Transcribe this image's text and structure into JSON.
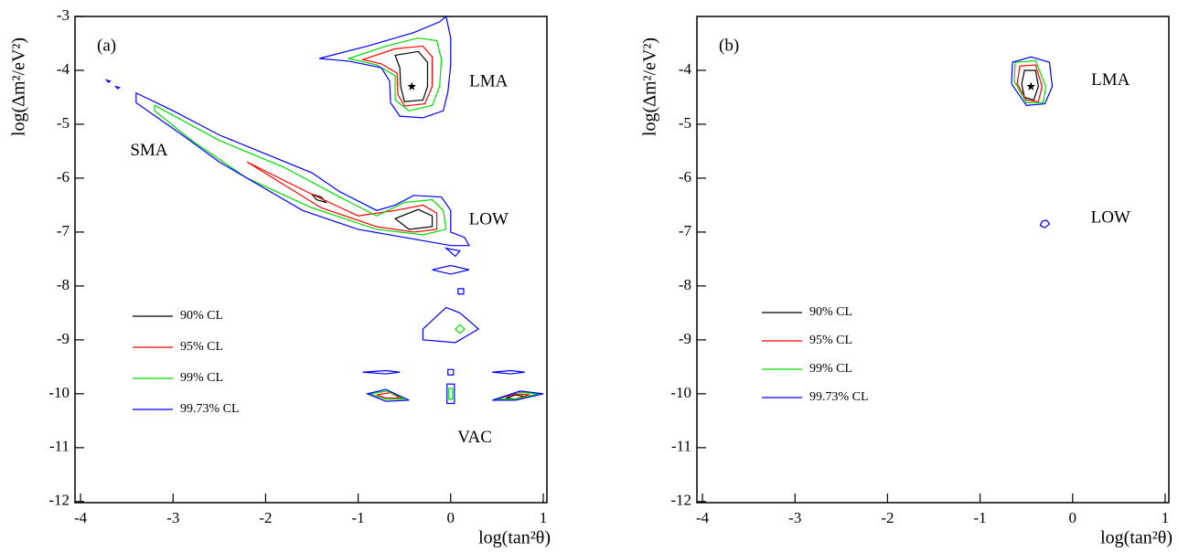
{
  "chart_data": [
    {
      "type": "contour",
      "panel_label": "(a)",
      "x_label": "log(tan²θ)",
      "y_label": "log(Δm²/eV²)",
      "xlim": [
        -4.06,
        1.04
      ],
      "ylim": [
        -12.02,
        -3
      ],
      "xticks": [
        -4,
        -3,
        -2,
        -1,
        0,
        1
      ],
      "yticks": [
        -3,
        -4,
        -5,
        -6,
        -7,
        -8,
        -9,
        -10,
        -11,
        -12
      ],
      "annotations": [
        "LMA",
        "SMA",
        "LOW",
        "VAC"
      ],
      "best_fit": {
        "x": -0.42,
        "y": -4.3
      },
      "series": [
        {
          "name": "90% CL",
          "color": "#000000",
          "contours": [
            {
              "x": [
                -0.6,
                -0.35,
                -0.25,
                -0.25,
                -0.3,
                -0.5,
                -0.54,
                -0.55
              ],
              "y": [
                -3.72,
                -3.65,
                -3.85,
                -4.3,
                -4.55,
                -4.58,
                -4.3,
                -3.95
              ]
            },
            {
              "x": [
                -0.6,
                -0.35,
                -0.2,
                -0.2,
                -0.45
              ],
              "y": [
                -6.75,
                -6.58,
                -6.7,
                -6.9,
                -6.95
              ]
            },
            {
              "x": [
                -1.5,
                -1.4,
                -1.35,
                -1.45
              ],
              "y": [
                -6.3,
                -6.35,
                -6.45,
                -6.4
              ]
            },
            {
              "x": [
                0.6,
                0.7,
                0.8,
                0.7
              ],
              "y": [
                -10.08,
                -10.02,
                -10.05,
                -10.1
              ]
            }
          ]
        },
        {
          "name": "95% CL",
          "color": "#ff0000",
          "contours": [
            {
              "x": [
                -0.95,
                -0.6,
                -0.3,
                -0.2,
                -0.2,
                -0.28,
                -0.5,
                -0.57,
                -0.58,
                -0.75
              ],
              "y": [
                -3.8,
                -3.6,
                -3.55,
                -3.75,
                -4.3,
                -4.62,
                -4.66,
                -4.45,
                -4.05,
                -3.88
              ]
            },
            {
              "x": [
                -2.2,
                -1.5,
                -1.0,
                -0.6,
                -0.3,
                -0.15,
                -0.15,
                -0.4,
                -0.8,
                -1.4
              ],
              "y": [
                -5.7,
                -6.3,
                -6.7,
                -6.6,
                -6.5,
                -6.65,
                -6.95,
                -7.0,
                -6.9,
                -6.55
              ]
            },
            {
              "x": [
                -0.8,
                -0.65,
                -0.55,
                -0.7
              ],
              "y": [
                -10.02,
                -9.98,
                -10.08,
                -10.08
              ]
            },
            {
              "x": [
                0.5,
                0.7,
                0.85,
                0.65
              ],
              "y": [
                -10.1,
                -10.0,
                -10.02,
                -10.12
              ]
            }
          ]
        },
        {
          "name": "99% CL",
          "color": "#00dd00",
          "contours": [
            {
              "x": [
                -1.1,
                -0.7,
                -0.35,
                -0.15,
                -0.1,
                -0.12,
                -0.2,
                -0.45,
                -0.6,
                -0.6,
                -0.8
              ],
              "y": [
                -3.78,
                -3.55,
                -3.4,
                -3.45,
                -3.8,
                -4.3,
                -4.65,
                -4.75,
                -4.55,
                -4.1,
                -3.9
              ]
            },
            {
              "x": [
                -3.2,
                -2.5,
                -1.8,
                -1.2,
                -0.8,
                -0.5,
                -0.2,
                -0.08,
                -0.05,
                -0.3,
                -0.8,
                -1.5,
                -2.2,
                -2.8,
                -3.2
              ],
              "y": [
                -4.65,
                -5.3,
                -5.8,
                -6.35,
                -6.7,
                -6.45,
                -6.4,
                -6.6,
                -6.95,
                -7.05,
                -6.95,
                -6.55,
                -6.0,
                -5.3,
                -4.75
              ]
            },
            {
              "x": [
                0.05,
                0.1,
                0.15,
                0.1
              ],
              "y": [
                -8.8,
                -8.72,
                -8.8,
                -8.88
              ]
            },
            {
              "x": [
                -0.88,
                -0.68,
                -0.5,
                -0.7
              ],
              "y": [
                -10.0,
                -9.95,
                -10.1,
                -10.1
              ]
            },
            {
              "x": [
                0.48,
                0.72,
                0.95,
                0.7
              ],
              "y": [
                -10.1,
                -9.97,
                -10.0,
                -10.1
              ]
            },
            {
              "x": [
                -0.02,
                0.02,
                0.02,
                -0.02
              ],
              "y": [
                -9.9,
                -9.9,
                -10.1,
                -10.1
              ]
            }
          ]
        },
        {
          "name": "99.73% CL",
          "color": "#0000ff",
          "contours": [
            {
              "x": [
                -1.42,
                -0.9,
                -0.4,
                -0.12,
                -0.05,
                0.0,
                0.0,
                -0.03,
                -0.08,
                -0.3,
                -0.55,
                -0.65,
                -0.66,
                -0.75,
                -1.1
              ],
              "y": [
                -3.78,
                -3.55,
                -3.3,
                -3.1,
                -3.0,
                -3.4,
                -3.9,
                -4.4,
                -4.75,
                -4.88,
                -4.85,
                -4.6,
                -4.2,
                -3.95,
                -3.83
              ]
            },
            {
              "x": [
                -3.4,
                -3.0,
                -2.5,
                -2.0,
                -1.5,
                -1.2,
                -0.8,
                -0.6,
                -0.4,
                -0.1,
                0.0,
                0.0,
                0.15,
                0.2,
                0.0,
                -0.5,
                -1.0,
                -1.6,
                -2.0,
                -2.5,
                -2.9,
                -3.4
              ],
              "y": [
                -4.42,
                -4.75,
                -5.2,
                -5.55,
                -5.9,
                -6.25,
                -6.6,
                -6.5,
                -6.32,
                -6.35,
                -6.6,
                -7.0,
                -7.1,
                -7.25,
                -7.25,
                -7.1,
                -6.95,
                -6.6,
                -6.2,
                -5.7,
                -5.2,
                -4.6
              ]
            },
            {
              "x": [
                -3.72,
                -3.68,
                -3.7
              ],
              "y": [
                -4.18,
                -4.2,
                -4.22
              ]
            },
            {
              "x": [
                -3.62,
                -3.58,
                -3.6
              ],
              "y": [
                -4.3,
                -4.32,
                -4.34
              ]
            },
            {
              "x": [
                -0.2,
                0.0,
                0.2,
                0.0
              ],
              "y": [
                -7.7,
                -7.62,
                -7.7,
                -7.78
              ]
            },
            {
              "x": [
                0.08,
                0.14,
                0.14,
                0.08
              ],
              "y": [
                -8.05,
                -8.05,
                -8.15,
                -8.15
              ]
            },
            {
              "x": [
                -0.3,
                -0.05,
                0.1,
                0.3,
                0.05,
                -0.3
              ],
              "y": [
                -8.8,
                -8.4,
                -8.5,
                -8.8,
                -9.05,
                -9.0
              ]
            },
            {
              "x": [
                -0.95,
                -0.7,
                -0.55,
                -0.7
              ],
              "y": [
                -9.6,
                -9.57,
                -9.6,
                -9.63
              ]
            },
            {
              "x": [
                0.45,
                0.65,
                0.8,
                0.65
              ],
              "y": [
                -9.6,
                -9.57,
                -9.6,
                -9.63
              ]
            },
            {
              "x": [
                -0.03,
                0.03,
                0.03,
                -0.03
              ],
              "y": [
                -9.55,
                -9.55,
                -9.65,
                -9.65
              ]
            },
            {
              "x": [
                -0.9,
                -0.7,
                -0.45,
                -0.7
              ],
              "y": [
                -10.0,
                -9.92,
                -10.12,
                -10.14
              ]
            },
            {
              "x": [
                0.45,
                0.75,
                1.0,
                0.7
              ],
              "y": [
                -10.12,
                -9.95,
                -10.0,
                -10.12
              ]
            },
            {
              "x": [
                -0.04,
                0.04,
                0.04,
                -0.04
              ],
              "y": [
                -9.82,
                -9.82,
                -10.18,
                -10.18
              ]
            },
            {
              "x": [
                -0.05,
                0.1,
                0.05
              ],
              "y": [
                -7.3,
                -7.35,
                -7.45
              ]
            }
          ]
        }
      ]
    },
    {
      "type": "contour",
      "panel_label": "(b)",
      "x_label": "log(tan²θ)",
      "y_label": "log(Δm²/eV²)",
      "xlim": [
        -4.06,
        1.04
      ],
      "ylim": [
        -12.02,
        -3
      ],
      "xticks": [
        -4,
        -3,
        -2,
        -1,
        0,
        1
      ],
      "yticks": [
        -4,
        -5,
        -6,
        -7,
        -8,
        -9,
        -10,
        -11,
        -12
      ],
      "annotations": [
        "LMA",
        "LOW"
      ],
      "best_fit": {
        "x": -0.45,
        "y": -4.3
      },
      "series": [
        {
          "name": "90% CL",
          "color": "#000000",
          "contours": [
            {
              "x": [
                -0.52,
                -0.4,
                -0.37,
                -0.42,
                -0.52,
                -0.55
              ],
              "y": [
                -4.0,
                -4.0,
                -4.3,
                -4.55,
                -4.5,
                -4.25
              ]
            }
          ]
        },
        {
          "name": "95% CL",
          "color": "#ff0000",
          "contours": [
            {
              "x": [
                -0.57,
                -0.4,
                -0.33,
                -0.37,
                -0.5,
                -0.6
              ],
              "y": [
                -3.92,
                -3.9,
                -4.3,
                -4.58,
                -4.55,
                -4.25
              ]
            }
          ]
        },
        {
          "name": "99% CL",
          "color": "#00dd00",
          "contours": [
            {
              "x": [
                -0.62,
                -0.4,
                -0.29,
                -0.32,
                -0.5,
                -0.63
              ],
              "y": [
                -3.85,
                -3.82,
                -4.3,
                -4.6,
                -4.6,
                -4.2
              ]
            }
          ]
        },
        {
          "name": "99.73% CL",
          "color": "#0000ff",
          "contours": [
            {
              "x": [
                -0.65,
                -0.45,
                -0.25,
                -0.22,
                -0.3,
                -0.5,
                -0.66
              ],
              "y": [
                -3.85,
                -3.75,
                -3.85,
                -4.3,
                -4.62,
                -4.65,
                -4.25
              ]
            },
            {
              "x": [
                -0.33,
                -0.28,
                -0.25,
                -0.3,
                -0.35
              ],
              "y": [
                -6.8,
                -6.78,
                -6.85,
                -6.92,
                -6.88
              ]
            }
          ]
        }
      ]
    }
  ]
}
